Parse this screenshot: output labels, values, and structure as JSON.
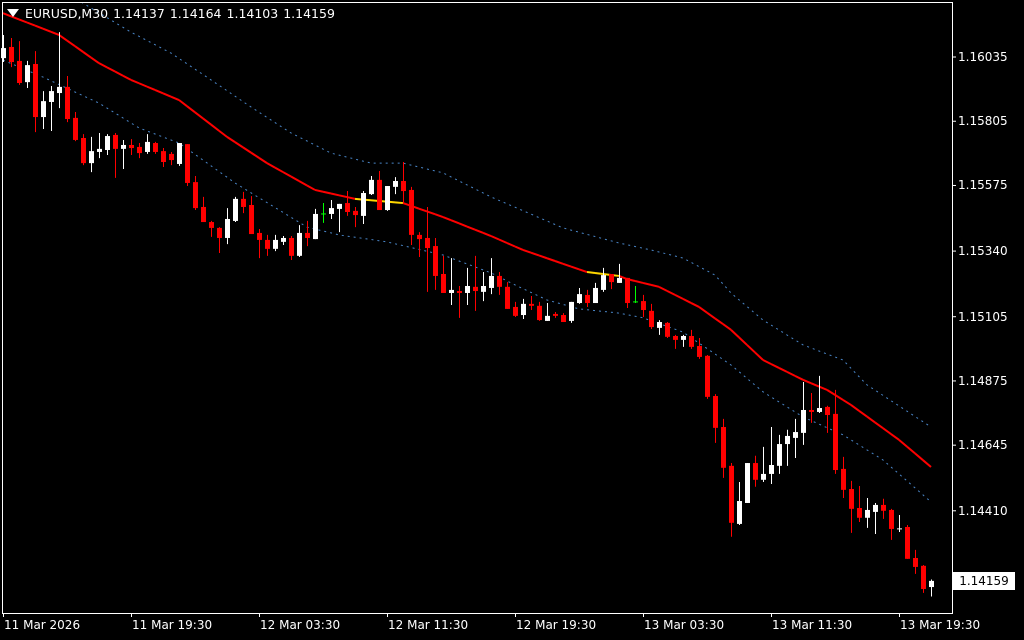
{
  "header": {
    "symbol": "EURUSD,M30",
    "open": "1.14137",
    "high": "1.14164",
    "low": "1.14103",
    "close": "1.14159",
    "menu_icon": "triangle-down-icon"
  },
  "colors": {
    "background": "#000000",
    "bull": "#ffffff",
    "bear": "#ff0000",
    "doji": "#00ff00",
    "ma_down": "#ff0000",
    "ma_flat": "#ffd700",
    "bands": "#4a86c8",
    "frame": "#ffffff"
  },
  "chart_data": {
    "type": "candlestick",
    "ylim": [
      1.14044,
      1.16232
    ],
    "grid": false,
    "y_ticks": [
      "1.16035",
      "1.15805",
      "1.15575",
      "1.15340",
      "1.15105",
      "1.14875",
      "1.14645",
      "1.14410"
    ],
    "current_price": "1.14159",
    "x_ticks": [
      {
        "label": "11 Mar 2026",
        "bar": 0
      },
      {
        "label": "11 Mar 19:30",
        "bar": 16
      },
      {
        "label": "12 Mar 03:30",
        "bar": 32
      },
      {
        "label": "12 Mar 11:30",
        "bar": 48
      },
      {
        "label": "12 Mar 19:30",
        "bar": 64
      },
      {
        "label": "13 Mar 03:30",
        "bar": 80
      },
      {
        "label": "13 Mar 11:30",
        "bar": 96
      },
      {
        "label": "13 Mar 19:30",
        "bar": 112
      }
    ],
    "candles_ohlc": [
      [
        1.16031,
        1.16114,
        1.16017,
        1.16067
      ],
      [
        1.16071,
        1.16103,
        1.15999,
        1.16017
      ],
      [
        1.16021,
        1.16092,
        1.15935,
        1.15942
      ],
      [
        1.15945,
        1.16021,
        1.15924,
        1.16006
      ],
      [
        1.1601,
        1.16056,
        1.15766,
        1.1582
      ],
      [
        1.1582,
        1.15913,
        1.15777,
        1.15877
      ],
      [
        1.15874,
        1.15931,
        1.1577,
        1.15913
      ],
      [
        1.15906,
        1.16124,
        1.15852,
        1.15928
      ],
      [
        1.15928,
        1.15967,
        1.15802,
        1.15813
      ],
      [
        1.15817,
        1.15838,
        1.15734,
        1.15738
      ],
      [
        1.15745,
        1.15759,
        1.15648,
        1.15655
      ],
      [
        1.15655,
        1.15749,
        1.15623,
        1.15698
      ],
      [
        1.15695,
        1.15763,
        1.15673,
        1.15706
      ],
      [
        1.15702,
        1.15759,
        1.15684,
        1.15752
      ],
      [
        1.15756,
        1.15763,
        1.15602,
        1.15706
      ],
      [
        1.15706,
        1.15738,
        1.15634,
        1.1572
      ],
      [
        1.1572,
        1.15741,
        1.15684,
        1.15709
      ],
      [
        1.15713,
        1.15727,
        1.15673,
        1.15691
      ],
      [
        1.15695,
        1.15759,
        1.15688,
        1.15731
      ],
      [
        1.15727,
        1.15731,
        1.15688,
        1.15695
      ],
      [
        1.15698,
        1.15709,
        1.15641,
        1.15659
      ],
      [
        1.15688,
        1.15695,
        1.15648,
        1.15666
      ],
      [
        1.15652,
        1.15727,
        1.15645,
        1.15727
      ],
      [
        1.15723,
        1.15723,
        1.15573,
        1.15584
      ],
      [
        1.15587,
        1.15609,
        1.15487,
        1.15494
      ],
      [
        1.15498,
        1.15534,
        1.15444,
        1.15444
      ],
      [
        1.15444,
        1.15448,
        1.15391,
        1.15423
      ],
      [
        1.15423,
        1.15426,
        1.15333,
        1.15387
      ],
      [
        1.15387,
        1.15494,
        1.15365,
        1.15455
      ],
      [
        1.15448,
        1.15534,
        1.15444,
        1.15527
      ],
      [
        1.15527,
        1.15552,
        1.15476,
        1.15498
      ],
      [
        1.15505,
        1.15537,
        1.15401,
        1.15401
      ],
      [
        1.15405,
        1.15419,
        1.15315,
        1.1538
      ],
      [
        1.1538,
        1.15398,
        1.15323,
        1.15348
      ],
      [
        1.15348,
        1.15398,
        1.1534,
        1.1538
      ],
      [
        1.15373,
        1.15394,
        1.15362,
        1.15387
      ],
      [
        1.15387,
        1.15394,
        1.15308,
        1.15323
      ],
      [
        1.15323,
        1.15433,
        1.15319,
        1.15405
      ],
      [
        1.15405,
        1.15448,
        1.15358,
        1.15387
      ],
      [
        1.15383,
        1.15491,
        1.15383,
        1.15473
      ],
      [
        1.15473,
        1.15512,
        1.15441,
        1.15473
      ],
      [
        1.15473,
        1.15523,
        1.15455,
        1.15494
      ],
      [
        1.15491,
        1.15509,
        1.15408,
        1.15509
      ],
      [
        1.15512,
        1.15555,
        1.15466,
        1.1548
      ],
      [
        1.15484,
        1.15498,
        1.15426,
        1.15469
      ],
      [
        1.15466,
        1.15555,
        1.15437,
        1.15548
      ],
      [
        1.15544,
        1.15609,
        1.15541,
        1.15595
      ],
      [
        1.15595,
        1.15627,
        1.15487,
        1.15487
      ],
      [
        1.15487,
        1.15573,
        1.15484,
        1.15573
      ],
      [
        1.1557,
        1.15605,
        1.15544,
        1.15591
      ],
      [
        1.15591,
        1.15659,
        1.15512,
        1.15555
      ],
      [
        1.15559,
        1.1557,
        1.15362,
        1.15398
      ],
      [
        1.15398,
        1.15408,
        1.15319,
        1.15383
      ],
      [
        1.15387,
        1.15498,
        1.15194,
        1.15351
      ],
      [
        1.15358,
        1.15387,
        1.15201,
        1.15251
      ],
      [
        1.15258,
        1.15323,
        1.1519,
        1.1519
      ],
      [
        1.1519,
        1.15315,
        1.15147,
        1.15201
      ],
      [
        1.15197,
        1.15215,
        1.15101,
        1.1519
      ],
      [
        1.1519,
        1.1528,
        1.15147,
        1.15215
      ],
      [
        1.15212,
        1.15323,
        1.15126,
        1.15197
      ],
      [
        1.15194,
        1.15265,
        1.15161,
        1.15215
      ],
      [
        1.15208,
        1.15315,
        1.15186,
        1.15251
      ],
      [
        1.15251,
        1.15265,
        1.15183,
        1.15212
      ],
      [
        1.15212,
        1.15229,
        1.15133,
        1.15133
      ],
      [
        1.1514,
        1.15158,
        1.15104,
        1.15108
      ],
      [
        1.15111,
        1.15169,
        1.15097,
        1.15151
      ],
      [
        1.15151,
        1.15179,
        1.15129,
        1.15144
      ],
      [
        1.15144,
        1.15158,
        1.1509,
        1.15093
      ],
      [
        1.1509,
        1.15154,
        1.1509,
        1.15108
      ],
      [
        1.15115,
        1.15122,
        1.15101,
        1.15108
      ],
      [
        1.15111,
        1.15118,
        1.15086,
        1.15086
      ],
      [
        1.1509,
        1.15158,
        1.15083,
        1.15158
      ],
      [
        1.15154,
        1.15208,
        1.15151,
        1.15186
      ],
      [
        1.15183,
        1.15201,
        1.1514,
        1.15154
      ],
      [
        1.15154,
        1.15226,
        1.15154,
        1.15208
      ],
      [
        1.15201,
        1.1528,
        1.15194,
        1.15254
      ],
      [
        1.15258,
        1.15258,
        1.15204,
        1.15229
      ],
      [
        1.15226,
        1.15294,
        1.15226,
        1.15244
      ],
      [
        1.15244,
        1.15244,
        1.15136,
        1.15154
      ],
      [
        1.15158,
        1.15215,
        1.15154,
        1.15158
      ],
      [
        1.15161,
        1.15183,
        1.15104,
        1.15129
      ],
      [
        1.15126,
        1.15151,
        1.15061,
        1.15068
      ],
      [
        1.15065,
        1.15093,
        1.1504,
        1.15086
      ],
      [
        1.15083,
        1.15086,
        1.15029,
        1.15033
      ],
      [
        1.15036,
        1.1504,
        1.1499,
        1.15022
      ],
      [
        1.15022,
        1.1504,
        1.14997,
        1.15036
      ],
      [
        1.15036,
        1.15058,
        1.1499,
        1.14997
      ],
      [
        1.15,
        1.15029,
        1.14954,
        1.14961
      ],
      [
        1.14965,
        1.14968,
        1.14811,
        1.14818
      ],
      [
        1.14821,
        1.14828,
        1.14653,
        1.14707
      ],
      [
        1.1471,
        1.14739,
        1.14528,
        1.14564
      ],
      [
        1.14571,
        1.14581,
        1.14317,
        1.14367
      ],
      [
        1.14363,
        1.14513,
        1.14359,
        1.14445
      ],
      [
        1.14438,
        1.14581,
        1.14438,
        1.14581
      ],
      [
        1.14581,
        1.14607,
        1.14496,
        1.14521
      ],
      [
        1.14521,
        1.14639,
        1.14513,
        1.14542
      ],
      [
        1.14542,
        1.1471,
        1.14506,
        1.14574
      ],
      [
        1.14571,
        1.14682,
        1.14542,
        1.14649
      ],
      [
        1.14649,
        1.147,
        1.14571,
        1.14678
      ],
      [
        1.14671,
        1.14739,
        1.14599,
        1.14692
      ],
      [
        1.14689,
        1.14871,
        1.14646,
        1.14771
      ],
      [
        1.14771,
        1.14832,
        1.14725,
        1.14764
      ],
      [
        1.14764,
        1.14893,
        1.1476,
        1.14778
      ],
      [
        1.14782,
        1.14786,
        1.14689,
        1.14753
      ],
      [
        1.14757,
        1.14843,
        1.14542,
        1.14556
      ],
      [
        1.1456,
        1.14603,
        1.14456,
        1.14485
      ],
      [
        1.14488,
        1.14517,
        1.14331,
        1.14417
      ],
      [
        1.1442,
        1.14499,
        1.1437,
        1.14385
      ],
      [
        1.14385,
        1.14456,
        1.14349,
        1.14413
      ],
      [
        1.14406,
        1.14438,
        1.14327,
        1.14431
      ],
      [
        1.14431,
        1.14453,
        1.14381,
        1.1441
      ],
      [
        1.14413,
        1.14417,
        1.14306,
        1.14345
      ],
      [
        1.14345,
        1.14395,
        1.14334,
        1.14347
      ],
      [
        1.14352,
        1.14359,
        1.14238,
        1.14238
      ],
      [
        1.14241,
        1.1427,
        1.14184,
        1.14209
      ],
      [
        1.14213,
        1.14216,
        1.14116,
        1.1413
      ],
      [
        1.14137,
        1.14164,
        1.14103,
        1.14159
      ]
    ],
    "moving_average": {
      "knots": [
        [
          0,
          1.16192
        ],
        [
          7,
          1.16114
        ],
        [
          12,
          1.16013
        ],
        [
          16,
          1.15953
        ],
        [
          22,
          1.15881
        ],
        [
          28,
          1.15749
        ],
        [
          33,
          1.15655
        ],
        [
          39,
          1.15559
        ],
        [
          44,
          1.15527
        ],
        [
          50,
          1.15512
        ],
        [
          51,
          1.15502
        ],
        [
          55,
          1.15462
        ],
        [
          61,
          1.15394
        ],
        [
          65,
          1.15344
        ],
        [
          73,
          1.15265
        ],
        [
          77,
          1.15251
        ],
        [
          78,
          1.1524
        ],
        [
          82,
          1.15212
        ],
        [
          87,
          1.1514
        ],
        [
          91,
          1.15058
        ],
        [
          95,
          1.1495
        ],
        [
          100,
          1.14879
        ],
        [
          103,
          1.14843
        ],
        [
          106,
          1.14789
        ],
        [
          112,
          1.14664
        ],
        [
          116,
          1.14567
        ]
      ],
      "flat_segments": [
        [
          44,
          50
        ],
        [
          73,
          77
        ]
      ]
    },
    "upper_band": [
      [
        0,
        1.1639
      ],
      [
        10,
        1.16228
      ],
      [
        16,
        1.16124
      ],
      [
        21,
        1.16049
      ],
      [
        26,
        1.15953
      ],
      [
        31,
        1.15856
      ],
      [
        36,
        1.15763
      ],
      [
        41,
        1.15691
      ],
      [
        46,
        1.15655
      ],
      [
        50,
        1.15655
      ],
      [
        55,
        1.1562
      ],
      [
        61,
        1.15534
      ],
      [
        70,
        1.15423
      ],
      [
        77,
        1.15369
      ],
      [
        81,
        1.15344
      ],
      [
        85,
        1.15315
      ],
      [
        89,
        1.15254
      ],
      [
        91,
        1.1519
      ],
      [
        95,
        1.15093
      ],
      [
        100,
        1.15004
      ],
      [
        105,
        1.1495
      ],
      [
        108,
        1.14861
      ],
      [
        116,
        1.1471
      ]
    ],
    "lower_band": [
      [
        0,
        1.16024
      ],
      [
        5,
        1.15963
      ],
      [
        12,
        1.1587
      ],
      [
        17,
        1.15781
      ],
      [
        22,
        1.15727
      ],
      [
        29,
        1.15584
      ],
      [
        38,
        1.15426
      ],
      [
        42,
        1.15398
      ],
      [
        48,
        1.15373
      ],
      [
        55,
        1.15326
      ],
      [
        61,
        1.15262
      ],
      [
        64,
        1.15219
      ],
      [
        68,
        1.15165
      ],
      [
        72,
        1.15133
      ],
      [
        77,
        1.15118
      ],
      [
        80,
        1.15101
      ],
      [
        85,
        1.1505
      ],
      [
        91,
        1.14932
      ],
      [
        95,
        1.14836
      ],
      [
        100,
        1.14746
      ],
      [
        105,
        1.14682
      ],
      [
        110,
        1.14592
      ],
      [
        116,
        1.14442
      ]
    ]
  }
}
